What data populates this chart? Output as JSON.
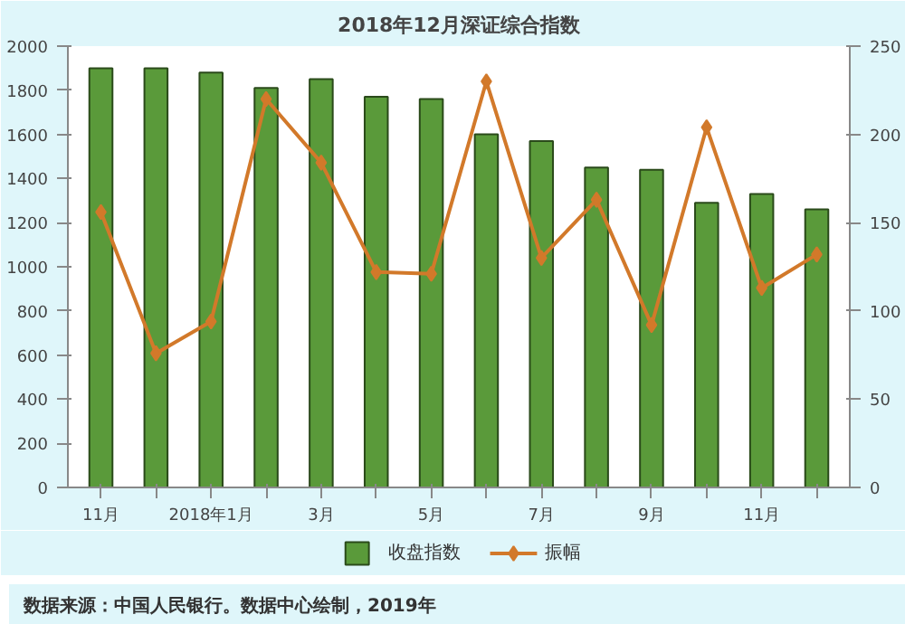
{
  "chart_data": {
    "type": "bar",
    "title": "2018年12月深证综合指数",
    "categories": [
      "11月",
      null,
      "2018年1月",
      null,
      "3月",
      null,
      "5月",
      null,
      "7月",
      null,
      "9月",
      null,
      "11月",
      null
    ],
    "series": [
      {
        "name": "收盘指数",
        "color": "#5a9a3a",
        "values": [
          1900,
          1900,
          1880,
          1810,
          1850,
          1770,
          1760,
          1600,
          1570,
          1450,
          1440,
          1290,
          1330,
          1260
        ]
      },
      {
        "name": "振幅",
        "type": "line",
        "axis": "y2",
        "color": "#d2792a",
        "marker": "diamond",
        "values": [
          156,
          76,
          94,
          220,
          184,
          122,
          121,
          230,
          130,
          163,
          92,
          204,
          113,
          132
        ]
      }
    ],
    "ylim": [
      0,
      2000
    ],
    "yticks": [
      0,
      200,
      400,
      600,
      800,
      1000,
      1200,
      1400,
      1600,
      1800,
      2000
    ],
    "y2lim": [
      0,
      250
    ],
    "y2ticks": [
      0,
      50,
      100,
      150,
      200,
      250
    ],
    "grid": false,
    "legend": "bottom",
    "annotations": [
      "数据来源：中国人民银行。数据中心绘制，2019年"
    ]
  }
}
